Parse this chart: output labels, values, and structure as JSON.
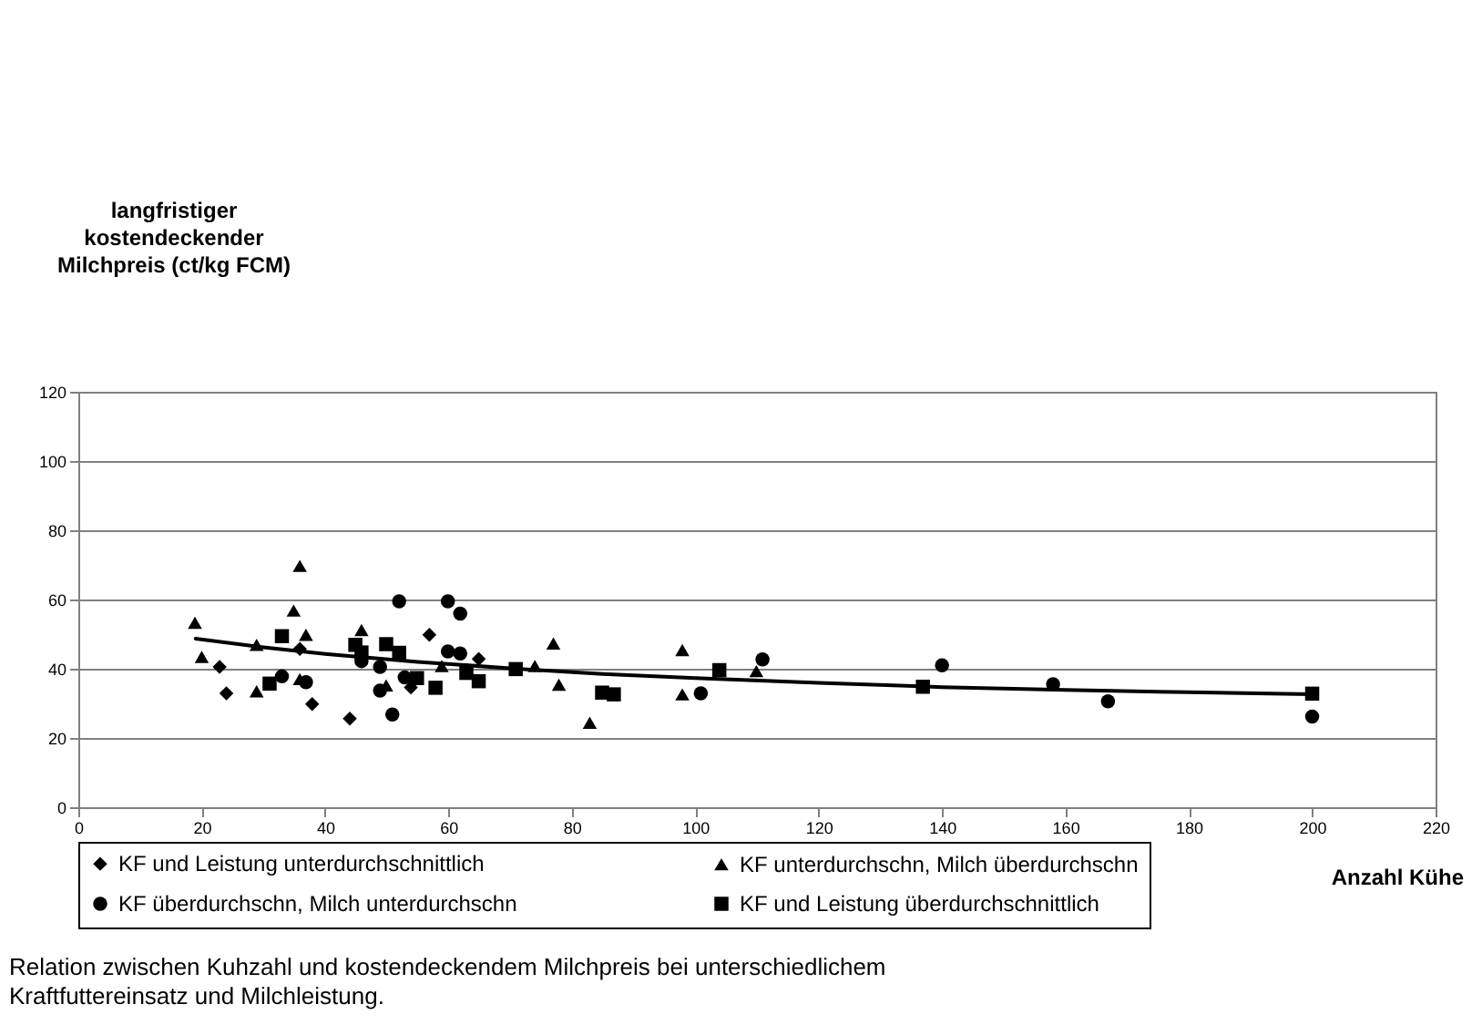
{
  "chart_data": {
    "type": "scatter",
    "ylabel": "langfristiger kostendeckender Milchpreis (ct/kg FCM)",
    "xlabel": "Anzahl Kühe",
    "xlim": [
      0,
      220
    ],
    "xticks": [
      0,
      20,
      40,
      60,
      80,
      100,
      120,
      140,
      160,
      180,
      200,
      220
    ],
    "ylim": [
      0,
      120
    ],
    "yticks": [
      0,
      20,
      40,
      60,
      80,
      100,
      120
    ],
    "grid": "y",
    "legend": "bottom",
    "annotations": [
      "Relation zwischen Kuhzahl und kostendeckendem Milchpreis bei unterschiedlichem Kraftfuttereinsatz und Milchleistung."
    ],
    "series": [
      {
        "name": "KF und Leistung unterdurchschnittlich",
        "color": "#000000",
        "marker": "diamond",
        "x": [
          22.9,
          24,
          37.9,
          44,
          35.9,
          56.9,
          64.9,
          53.9
        ],
        "values": [
          40.5,
          32.9,
          29.8,
          25.6,
          45.7,
          49.8,
          42.8,
          34.6
        ]
      },
      {
        "name": "KF unterdurchschn, Milch überdurchschn",
        "color": "#000000",
        "marker": "triangle",
        "x": [
          35.9,
          18.9,
          34.9,
          36.9,
          45.9,
          28.9,
          20,
          28.9,
          35.9,
          49.9,
          58.9,
          74,
          77,
          77.9,
          82.9,
          97.9,
          97.9,
          109.9
        ],
        "values": [
          69.7,
          53.3,
          56.8,
          49.8,
          51.2,
          46.9,
          43.4,
          33.5,
          37,
          35.2,
          40.8,
          40.8,
          47.3,
          35.4,
          24.4,
          45.4,
          32.6,
          39.3
        ]
      },
      {
        "name": "KF überdurchschn, Milch unterdurchschn",
        "color": "#000000",
        "marker": "circle",
        "x": [
          52,
          59.9,
          61.9,
          59.9,
          61.9,
          45.9,
          48.9,
          33,
          36.9,
          48.9,
          52.9,
          50.9,
          100.9,
          110.9,
          140,
          158,
          166.9,
          200
        ],
        "values": [
          59.5,
          59.5,
          55.9,
          45,
          44.4,
          42.2,
          40.5,
          37.8,
          36.1,
          33.7,
          37.5,
          26.8,
          32.9,
          42.7,
          41,
          35.5,
          30.6,
          26.2
        ]
      },
      {
        "name": "KF und Leistung überdurchschnittlich",
        "color": "#000000",
        "marker": "square",
        "x": [
          33,
          44.9,
          49.9,
          45.9,
          52,
          31,
          54.9,
          57.9,
          62.9,
          64.9,
          70.9,
          84.9,
          86.8,
          103.9,
          136.9,
          200
        ],
        "values": [
          49.4,
          46.9,
          47.1,
          44.7,
          44.6,
          35.7,
          37.3,
          34.5,
          38.8,
          36.4,
          39.9,
          33.1,
          32.6,
          39.6,
          34.8,
          32.8
        ]
      },
      {
        "type": "line",
        "color": "#000000",
        "marker": "none",
        "line_style": "solid",
        "x": [
          19,
          30,
          40,
          55,
          71,
          85,
          100,
          120,
          140,
          160,
          180,
          200
        ],
        "values": [
          48.7,
          46.2,
          44.3,
          42,
          40,
          38.5,
          37.3,
          35.9,
          34.7,
          33.9,
          33.2,
          32.6
        ]
      }
    ]
  }
}
